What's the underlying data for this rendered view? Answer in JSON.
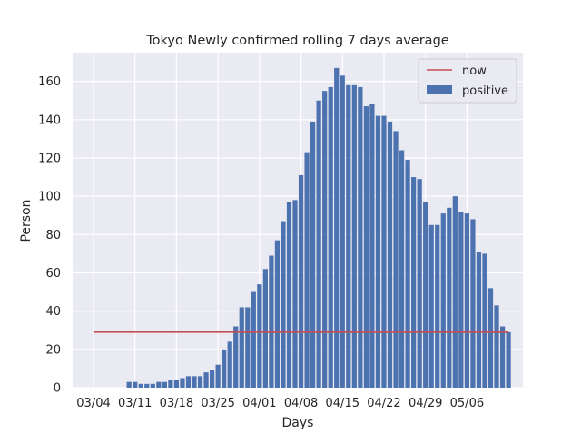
{
  "chart_data": {
    "type": "bar",
    "title": "Tokyo Newly confirmed rolling 7 days average",
    "xlabel": "Days",
    "ylabel": "Person",
    "ylim": [
      0,
      175
    ],
    "yticks": [
      0,
      20,
      40,
      60,
      80,
      100,
      120,
      140,
      160
    ],
    "xtick_labels": [
      "03/04",
      "03/11",
      "03/18",
      "03/25",
      "04/01",
      "04/08",
      "04/15",
      "04/22",
      "04/29",
      "05/06"
    ],
    "grid": true,
    "legend_position": "top-right",
    "x": [
      "03/04",
      "03/05",
      "03/06",
      "03/07",
      "03/08",
      "03/09",
      "03/10",
      "03/11",
      "03/12",
      "03/13",
      "03/14",
      "03/15",
      "03/16",
      "03/17",
      "03/18",
      "03/19",
      "03/20",
      "03/21",
      "03/22",
      "03/23",
      "03/24",
      "03/25",
      "03/26",
      "03/27",
      "03/28",
      "03/29",
      "03/30",
      "03/31",
      "04/01",
      "04/02",
      "04/03",
      "04/04",
      "04/05",
      "04/06",
      "04/07",
      "04/08",
      "04/09",
      "04/10",
      "04/11",
      "04/12",
      "04/13",
      "04/14",
      "04/15",
      "04/16",
      "04/17",
      "04/18",
      "04/19",
      "04/20",
      "04/21",
      "04/22",
      "04/23",
      "04/24",
      "04/25",
      "04/26",
      "04/27",
      "04/28",
      "04/29",
      "04/30",
      "05/01",
      "05/02",
      "05/03",
      "05/04",
      "05/05",
      "05/06",
      "05/07",
      "05/08",
      "05/09",
      "05/10",
      "05/11",
      "05/12",
      "05/13"
    ],
    "series": [
      {
        "name": "positive",
        "color": "#4c72b0",
        "values": [
          0,
          0,
          0,
          0,
          0,
          0,
          3,
          3,
          2,
          2,
          2,
          3,
          3,
          4,
          4,
          5,
          6,
          6,
          6,
          8,
          9,
          12,
          20,
          24,
          32,
          42,
          42,
          50,
          54,
          62,
          69,
          77,
          87,
          97,
          98,
          111,
          123,
          139,
          150,
          155,
          157,
          167,
          163,
          158,
          158,
          157,
          147,
          148,
          142,
          142,
          139,
          134,
          124,
          119,
          110,
          109,
          97,
          85,
          85,
          91,
          94,
          100,
          92,
          91,
          88,
          71,
          70,
          52,
          43,
          32,
          29
        ]
      },
      {
        "name": "now",
        "type": "hline",
        "color": "#c44e52",
        "value": 29
      }
    ]
  }
}
